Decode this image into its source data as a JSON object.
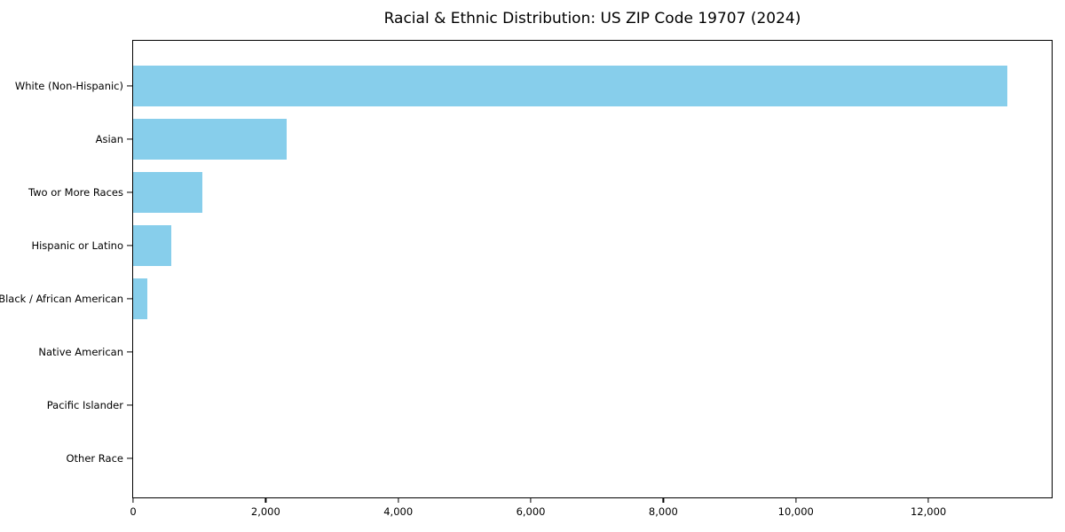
{
  "chart_data": {
    "type": "bar",
    "orientation": "horizontal",
    "title": "Racial & Ethnic Distribution: US ZIP Code 19707 (2024)",
    "categories": [
      "White (Non-Hispanic)",
      "Asian",
      "Two or More Races",
      "Hispanic or Latino",
      "Black / African American",
      "Native American",
      "Pacific Islander",
      "Other Race"
    ],
    "values": [
      13190,
      2320,
      1040,
      570,
      215,
      0,
      0,
      0
    ],
    "xlabel": "",
    "ylabel": "",
    "xlim": [
      0,
      13860
    ],
    "x_ticks": [
      0,
      2000,
      4000,
      6000,
      8000,
      10000,
      12000
    ],
    "x_tick_labels": [
      "0",
      "2,000",
      "4,000",
      "6,000",
      "8,000",
      "10,000",
      "12,000"
    ],
    "bar_color": "#87CEEB",
    "spine_color": "#000000",
    "text_color": "#000000",
    "grid": false,
    "legend": "none"
  }
}
